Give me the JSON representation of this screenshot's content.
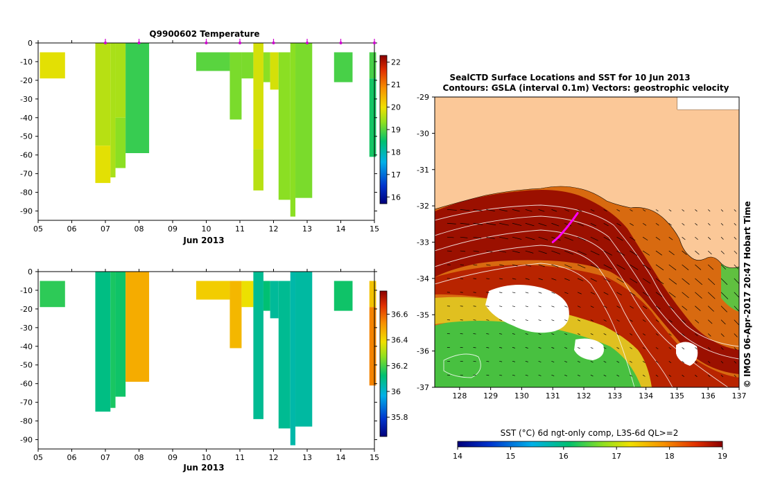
{
  "chart_data": [
    {
      "type": "heatmap",
      "panel": "temperature-profile",
      "title": "Q9900602  Temperature",
      "xlabel": "Jun 2013",
      "x_ticks": [
        "05",
        "06",
        "07",
        "08",
        "09",
        "10",
        "11",
        "12",
        "13",
        "14",
        "15"
      ],
      "xlim": [
        5,
        15
      ],
      "ylim": [
        -95,
        0
      ],
      "y_ticks": [
        0,
        -10,
        -20,
        -30,
        -40,
        -50,
        -60,
        -70,
        -80,
        -90
      ],
      "colorbar": {
        "min": 15.7,
        "max": 22.3,
        "ticks": [
          16,
          17,
          18,
          19,
          20,
          21,
          22
        ]
      },
      "profile_markers": [
        7.0,
        8.0,
        10.0,
        11.0,
        12.0,
        13.0,
        14.0,
        15.0
      ],
      "profiles": [
        {
          "x0": 5.05,
          "x1": 5.8,
          "segments": [
            {
              "top": -5,
              "bot": -19,
              "v": 19.9
            }
          ]
        },
        {
          "x0": 6.7,
          "x1": 7.15,
          "segments": [
            {
              "top": 0,
              "bot": -55,
              "v": 19.6
            },
            {
              "top": -55,
              "bot": -75,
              "v": 19.9
            }
          ]
        },
        {
          "x0": 7.15,
          "x1": 7.3,
          "segments": [
            {
              "top": 0,
              "bot": -72,
              "v": 19.5
            }
          ]
        },
        {
          "x0": 7.3,
          "x1": 7.6,
          "segments": [
            {
              "top": 0,
              "bot": -40,
              "v": 19.5
            },
            {
              "top": -40,
              "bot": -67,
              "v": 19.3
            }
          ]
        },
        {
          "x0": 7.6,
          "x1": 8.3,
          "segments": [
            {
              "top": 0,
              "bot": -59,
              "v": 18.8
            }
          ]
        },
        {
          "x0": 9.7,
          "x1": 10.7,
          "segments": [
            {
              "top": -5,
              "bot": -15,
              "v": 19.0
            }
          ]
        },
        {
          "x0": 10.7,
          "x1": 11.05,
          "segments": [
            {
              "top": -5,
              "bot": -41,
              "v": 19.2
            }
          ]
        },
        {
          "x0": 11.05,
          "x1": 11.4,
          "segments": [
            {
              "top": -5,
              "bot": -19,
              "v": 19.2
            }
          ]
        },
        {
          "x0": 11.4,
          "x1": 11.7,
          "segments": [
            {
              "top": 0,
              "bot": -57,
              "v": 19.8
            },
            {
              "top": -57,
              "bot": -79,
              "v": 19.6
            }
          ]
        },
        {
          "x0": 11.7,
          "x1": 11.9,
          "segments": [
            {
              "top": -5,
              "bot": -21,
              "v": 19.3
            }
          ]
        },
        {
          "x0": 11.9,
          "x1": 12.15,
          "segments": [
            {
              "top": -5,
              "bot": -25,
              "v": 19.8
            }
          ]
        },
        {
          "x0": 12.15,
          "x1": 12.5,
          "segments": [
            {
              "top": -5,
              "bot": -84,
              "v": 19.3
            }
          ]
        },
        {
          "x0": 12.5,
          "x1": 12.65,
          "segments": [
            {
              "top": 0,
              "bot": -93,
              "v": 19.3
            }
          ]
        },
        {
          "x0": 12.65,
          "x1": 13.15,
          "segments": [
            {
              "top": 0,
              "bot": -83,
              "v": 19.2
            }
          ]
        },
        {
          "x0": 13.8,
          "x1": 14.35,
          "segments": [
            {
              "top": -5,
              "bot": -21,
              "v": 18.9
            }
          ]
        },
        {
          "x0": 14.85,
          "x1": 15.05,
          "segments": [
            {
              "top": -5,
              "bot": -19,
              "v": 18.9
            },
            {
              "top": -19,
              "bot": -61,
              "v": 18.6
            }
          ]
        }
      ]
    },
    {
      "type": "heatmap",
      "panel": "salinity-profile",
      "title": "",
      "xlabel": "Jun 2013",
      "x_ticks": [
        "05",
        "06",
        "07",
        "08",
        "09",
        "10",
        "11",
        "12",
        "13",
        "14",
        "15"
      ],
      "xlim": [
        5,
        15
      ],
      "ylim": [
        -95,
        0
      ],
      "y_ticks": [
        0,
        -10,
        -20,
        -30,
        -40,
        -50,
        -60,
        -70,
        -80,
        -90
      ],
      "colorbar": {
        "min": 35.65,
        "max": 36.78,
        "ticks": [
          35.8,
          36,
          36.2,
          36.4,
          36.6
        ]
      },
      "profiles": [
        {
          "x0": 5.05,
          "x1": 5.8,
          "segments": [
            {
              "top": -5,
              "bot": -19,
              "v": 36.17
            }
          ]
        },
        {
          "x0": 6.7,
          "x1": 7.15,
          "segments": [
            {
              "top": 0,
              "bot": -75,
              "v": 36.1
            }
          ]
        },
        {
          "x0": 7.15,
          "x1": 7.3,
          "segments": [
            {
              "top": 0,
              "bot": -73,
              "v": 36.15
            }
          ]
        },
        {
          "x0": 7.3,
          "x1": 7.6,
          "segments": [
            {
              "top": 0,
              "bot": -67,
              "v": 36.14
            }
          ]
        },
        {
          "x0": 7.6,
          "x1": 8.3,
          "segments": [
            {
              "top": 0,
              "bot": -59,
              "v": 36.48
            }
          ]
        },
        {
          "x0": 9.7,
          "x1": 10.7,
          "segments": [
            {
              "top": -5,
              "bot": -15,
              "v": 36.42
            }
          ]
        },
        {
          "x0": 10.7,
          "x1": 11.05,
          "segments": [
            {
              "top": -5,
              "bot": -41,
              "v": 36.46
            }
          ]
        },
        {
          "x0": 11.05,
          "x1": 11.4,
          "segments": [
            {
              "top": -5,
              "bot": -19,
              "v": 36.38
            }
          ]
        },
        {
          "x0": 11.4,
          "x1": 11.7,
          "segments": [
            {
              "top": 0,
              "bot": -79,
              "v": 36.08
            }
          ]
        },
        {
          "x0": 11.7,
          "x1": 11.9,
          "segments": [
            {
              "top": -5,
              "bot": -21,
              "v": 36.12
            }
          ]
        },
        {
          "x0": 11.9,
          "x1": 12.15,
          "segments": [
            {
              "top": -5,
              "bot": -25,
              "v": 36.07
            }
          ]
        },
        {
          "x0": 12.15,
          "x1": 12.5,
          "segments": [
            {
              "top": -5,
              "bot": -84,
              "v": 36.08
            }
          ]
        },
        {
          "x0": 12.5,
          "x1": 12.65,
          "segments": [
            {
              "top": 0,
              "bot": -93,
              "v": 36.05
            }
          ]
        },
        {
          "x0": 12.65,
          "x1": 13.15,
          "segments": [
            {
              "top": 0,
              "bot": -83,
              "v": 36.06
            }
          ]
        },
        {
          "x0": 13.8,
          "x1": 14.35,
          "segments": [
            {
              "top": -5,
              "bot": -21,
              "v": 36.14
            }
          ]
        },
        {
          "x0": 14.85,
          "x1": 15.05,
          "segments": [
            {
              "top": -5,
              "bot": -19,
              "v": 36.44
            },
            {
              "top": -19,
              "bot": -61,
              "v": 36.55
            }
          ]
        }
      ]
    },
    {
      "type": "heatmap",
      "panel": "sst-map",
      "title": "SealCTD Surface Locations and SST for 10 Jun 2013",
      "subtitle": "Contours: GSLA (interval 0.1m) Vectors: geostrophic velocity",
      "x_ticks": [
        128,
        129,
        130,
        131,
        132,
        133,
        134,
        135,
        136,
        137
      ],
      "y_ticks": [
        -29,
        -30,
        -31,
        -32,
        -33,
        -34,
        -35,
        -36,
        -37
      ],
      "xlim": [
        127.2,
        137.0
      ],
      "ylim": [
        -37.0,
        -29.0
      ],
      "colorbar": {
        "label": "SST (°C) 6d ngt-only comp, L3S-6d QL>=2",
        "min": 14,
        "max": 19,
        "ticks": [
          14,
          15,
          16,
          17,
          18,
          19
        ]
      },
      "track": [
        [
          131.0,
          -33.0
        ],
        [
          131.2,
          -32.85
        ],
        [
          131.45,
          -32.6
        ],
        [
          131.65,
          -32.38
        ],
        [
          131.8,
          -32.2
        ]
      ],
      "credit": "© IMOS 06-Apr-2017 20:47 Hobart Time"
    }
  ],
  "colors": {
    "land": "#fbc898",
    "track": "#ff00ff",
    "marker": "#cc00cc",
    "blank": "#ffffff"
  }
}
